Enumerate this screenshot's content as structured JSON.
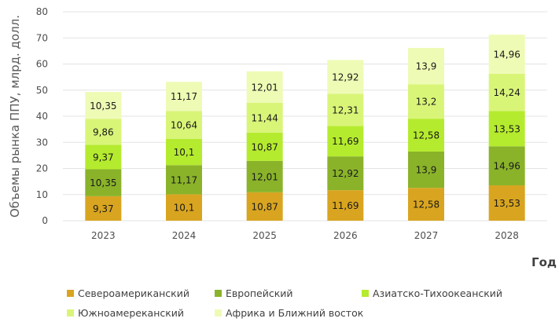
{
  "chart_data": {
    "type": "bar",
    "stacked": true,
    "title": "",
    "ylabel": "Объемы рынка ППУ, млрд. долл.",
    "xlabel": "Год",
    "ylim": [
      0,
      80
    ],
    "yticks": [
      0,
      10,
      20,
      30,
      40,
      50,
      60,
      70,
      80
    ],
    "grid": true,
    "legend_position": "bottom",
    "categories": [
      "2023",
      "2024",
      "2025",
      "2026",
      "2027",
      "2028"
    ],
    "series": [
      {
        "name": "Североамериканский",
        "color": "#d9a520",
        "values": [
          9.37,
          10.1,
          10.87,
          11.69,
          12.58,
          13.53
        ],
        "labels": [
          "9,37",
          "10,1",
          "10,87",
          "11,69",
          "12,58",
          "13,53"
        ]
      },
      {
        "name": "Европейский",
        "color": "#8ab32a",
        "values": [
          10.35,
          11.17,
          12.01,
          12.92,
          13.9,
          14.96
        ],
        "labels": [
          "10,35",
          "11,17",
          "12,01",
          "12,92",
          "13,9",
          "14,96"
        ]
      },
      {
        "name": "Азиатско-Тихоокеанский",
        "color": "#b5eb2e",
        "values": [
          9.37,
          10.1,
          10.87,
          11.69,
          12.58,
          13.53
        ],
        "labels": [
          "9,37",
          "10,1",
          "10,87",
          "11,69",
          "12,58",
          "13,53"
        ]
      },
      {
        "name": "Южноамереканский",
        "color": "#d9f578",
        "values": [
          9.86,
          10.64,
          11.44,
          12.31,
          13.2,
          14.24
        ],
        "labels": [
          "9,86",
          "10,64",
          "11,44",
          "12,31",
          "13,2",
          "14,24"
        ]
      },
      {
        "name": "Африка и Ближний восток",
        "color": "#eefbb5",
        "values": [
          10.35,
          11.17,
          12.01,
          12.92,
          13.9,
          14.96
        ],
        "labels": [
          "10,35",
          "11,17",
          "12,01",
          "12,92",
          "13,9",
          "14,96"
        ]
      }
    ]
  }
}
